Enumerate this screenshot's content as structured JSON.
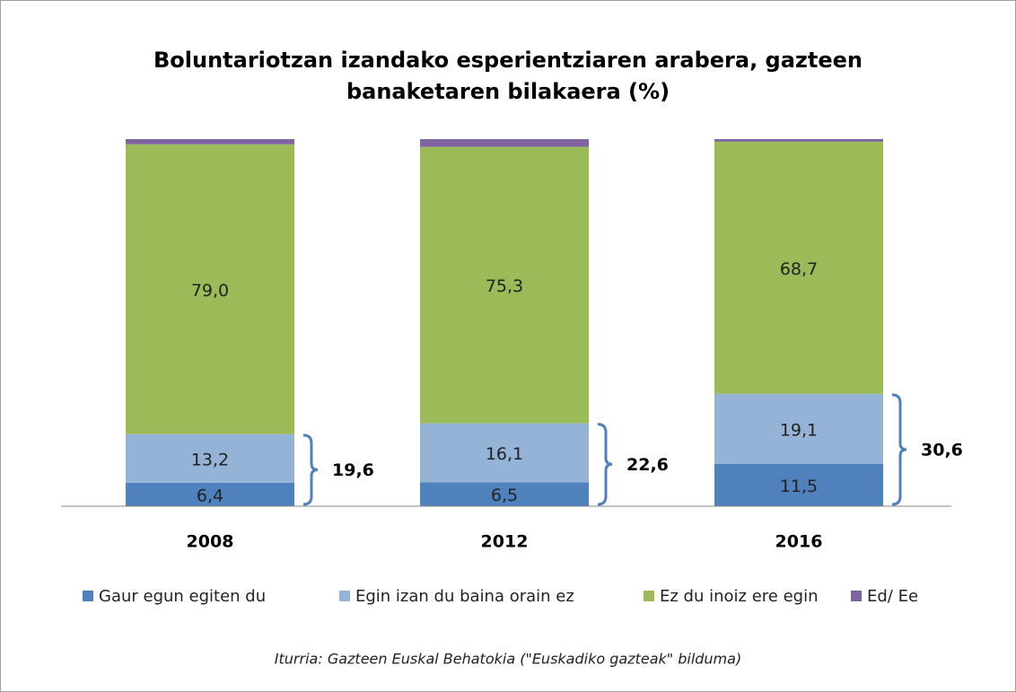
{
  "chart_data": {
    "type": "stacked_bar",
    "title": [
      "Boluntariotzan izandako esperientziaren arabera, gazteen",
      "banaketaren bilakaera (%)"
    ],
    "categories": [
      "2008",
      "2012",
      "2016"
    ],
    "series": [
      {
        "name": "Gaur egun egiten du",
        "color": "#4f81bd",
        "values": [
          6.4,
          6.5,
          11.5
        ],
        "value_labels": [
          "6,4",
          "6,5",
          "11,5"
        ]
      },
      {
        "name": "Egin izan du baina orain ez",
        "color": "#95b3d7",
        "values": [
          13.2,
          16.1,
          19.1
        ],
        "value_labels": [
          "13,2",
          "16,1",
          "19,1"
        ]
      },
      {
        "name": "Ez du inoiz ere egin",
        "color": "#9bbb59",
        "values": [
          79.0,
          75.3,
          68.7
        ],
        "value_labels": [
          "79,0",
          "75,3",
          "68,7"
        ]
      },
      {
        "name": "Ed/ Ee",
        "color": "#8064a2",
        "values": [
          1.4,
          2.1,
          0.7
        ]
      }
    ],
    "bracket_labels": [
      "19,6",
      "22,6",
      "30,6"
    ],
    "ylim": [
      0,
      100
    ],
    "source": "Iturria: Gazteen Euskal Behatokia (\"Euskadiko gazteak\" bilduma)"
  }
}
